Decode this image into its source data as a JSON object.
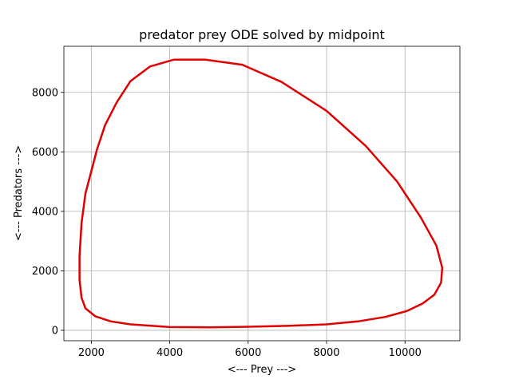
{
  "chart_data": {
    "type": "line",
    "title": "predator prey ODE solved by midpoint",
    "xlabel": "<--- Prey --->",
    "ylabel": "<--- Predators --->",
    "xlim": [
      1300,
      11400
    ],
    "ylim": [
      -350,
      9550
    ],
    "xticks": [
      2000,
      4000,
      6000,
      8000,
      10000
    ],
    "yticks": [
      0,
      2000,
      4000,
      6000,
      8000
    ],
    "grid": true,
    "series": [
      {
        "color": "#e00000",
        "x": [
          4900,
          5850,
          6850,
          8000,
          9000,
          9800,
          10400,
          10800,
          10950,
          10920,
          10750,
          10450,
          10050,
          9500,
          8800,
          8000,
          7000,
          6000,
          5000,
          4000,
          3000,
          2500,
          2100,
          1850,
          1750,
          1700,
          1700,
          1750,
          1850,
          2000,
          2150,
          2350,
          2650,
          3000,
          3500,
          4100,
          4900
        ],
        "y": [
          9100,
          8930,
          8350,
          7380,
          6200,
          5000,
          3800,
          2850,
          2100,
          1600,
          1200,
          900,
          650,
          450,
          300,
          200,
          150,
          120,
          100,
          110,
          200,
          300,
          470,
          740,
          1100,
          1700,
          2500,
          3600,
          4600,
          5350,
          6100,
          6900,
          7670,
          8380,
          8870,
          9100,
          9100
        ]
      }
    ]
  }
}
